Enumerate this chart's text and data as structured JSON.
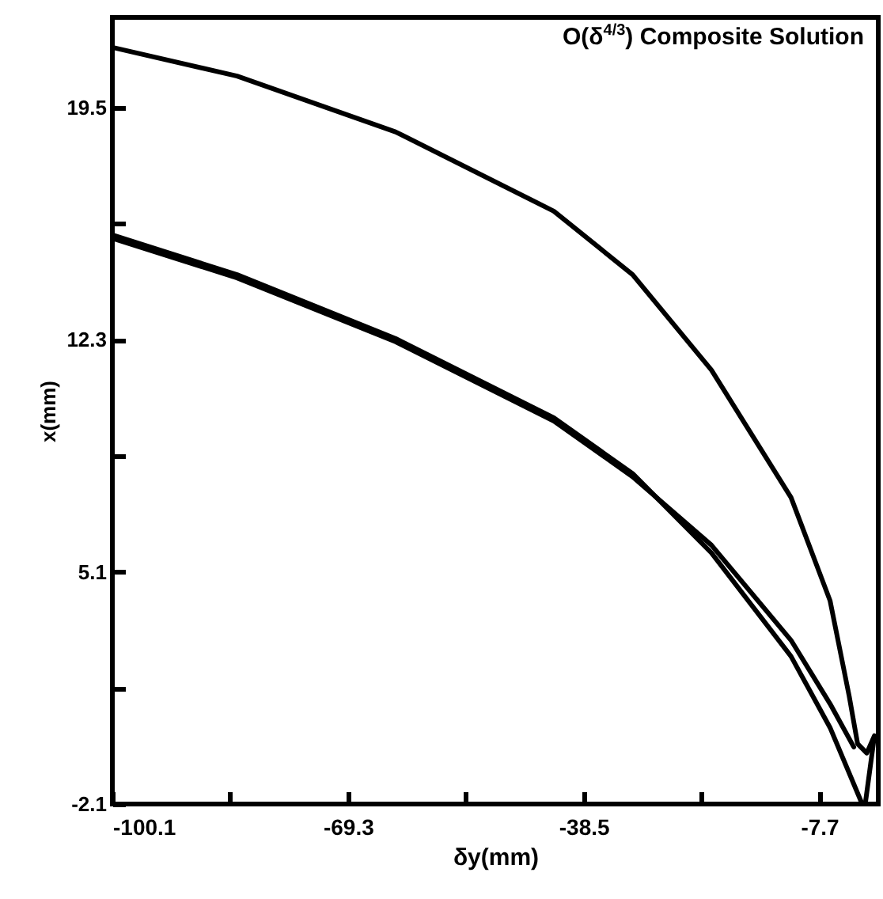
{
  "chart_data": {
    "type": "line",
    "title": "O(δ$^{4/3}$) Composite Solution",
    "xlabel": "δy(mm)",
    "ylabel": "x(mm)",
    "xlim": [
      -100.1,
      0
    ],
    "ylim": [
      -2.1,
      22.3
    ],
    "xticks": [
      -100.1,
      {
        "value": -84.7,
        "label": null
      },
      -69.3,
      {
        "value": -53.9,
        "label": null
      },
      -38.5,
      {
        "value": -23.1,
        "label": null
      },
      -7.7
    ],
    "yticks": [
      -2.1,
      {
        "value": 1.5,
        "label": null
      },
      5.1,
      {
        "value": 8.7,
        "label": null
      },
      12.3,
      {
        "value": 15.9,
        "label": null
      },
      19.5
    ],
    "series": [
      {
        "color": "#000000",
        "x": [
          -100.1,
          -83.8,
          -63.1,
          -42.4,
          -32.1,
          -21.8,
          -11.4,
          -6.3,
          -3.8,
          -2.7,
          -1.5,
          -0.5,
          -1.7
        ],
        "values": [
          21.37,
          20.48,
          18.75,
          16.29,
          14.32,
          11.36,
          7.41,
          4.21,
          1.25,
          -0.23,
          -0.52,
          0.02,
          -2.1
        ]
      },
      {
        "color": "#000000",
        "x": [
          -100.1,
          -83.8,
          -63.1,
          -42.4,
          -32.1,
          -21.8,
          -11.4,
          -6.3,
          -2.1
        ],
        "values": [
          15.55,
          14.32,
          12.34,
          9.88,
          8.15,
          5.69,
          2.48,
          0.27,
          -2.1
        ]
      },
      {
        "color": "#000000",
        "x": [
          -100.1,
          -83.8,
          -63.1,
          -42.4,
          -32.1,
          -21.8,
          -11.4,
          -6.3,
          -3.2
        ],
        "values": [
          15.45,
          14.22,
          12.24,
          9.78,
          8.05,
          5.93,
          2.98,
          1.01,
          -0.33
        ]
      }
    ]
  }
}
